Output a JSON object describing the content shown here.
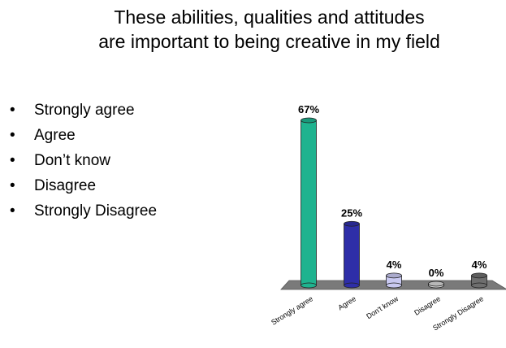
{
  "slide": {
    "title_line1": "These abilities, qualities and attitudes",
    "title_line2": "are important to being creative in my field",
    "bullets": [
      "Strongly agree",
      "Agree",
      "Don’t know",
      "Disagree",
      "Strongly Disagree"
    ]
  },
  "chart_data": {
    "type": "bar",
    "categories": [
      "Strongly agree",
      "Agree",
      "Don't know",
      "Disagree",
      "Strongly Disagree"
    ],
    "values": [
      67,
      25,
      4,
      0,
      4
    ],
    "value_labels": [
      "67%",
      "25%",
      "4%",
      "0%",
      "4%"
    ],
    "colors": [
      "#1fb38f",
      "#2e2ea8",
      "#c8c8f0",
      "#d8d8d8",
      "#6e6e6e"
    ],
    "ylim": [
      0,
      67
    ],
    "grid": false,
    "style": "3d-cylinder"
  }
}
